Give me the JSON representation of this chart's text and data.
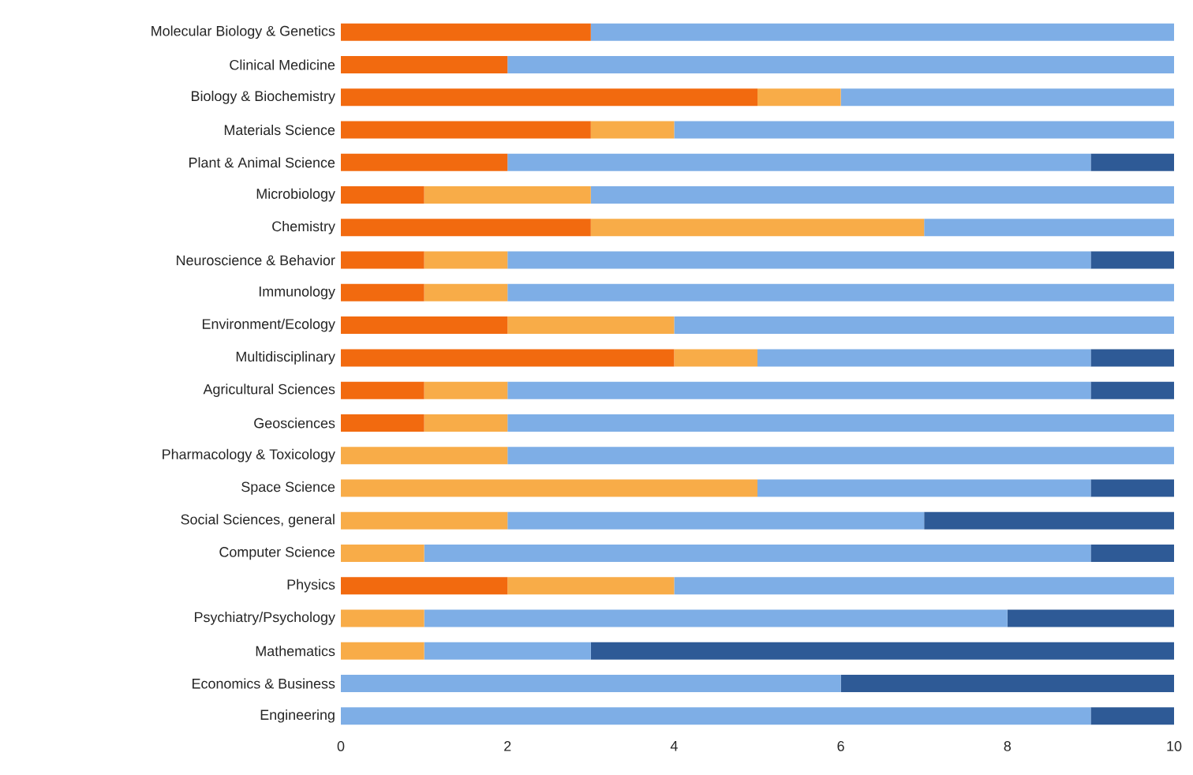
{
  "chart_data": {
    "type": "bar",
    "orientation": "horizontal",
    "stacked": true,
    "categories": [
      "Molecular Biology & Genetics",
      "Clinical Medicine",
      "Biology & Biochemistry",
      "Materials Science",
      "Plant & Animal Science",
      "Microbiology",
      "Chemistry",
      "Neuroscience & Behavior",
      "Immunology",
      "Environment/Ecology",
      "Multidisciplinary",
      "Agricultural Sciences",
      "Geosciences",
      "Pharmacology & Toxicology",
      "Space Science",
      "Social Sciences, general",
      "Computer Science",
      "Physics",
      "Psychiatry/Psychology",
      "Mathematics",
      "Economics & Business",
      "Engineering"
    ],
    "series": [
      {
        "color": "#f26a0f",
        "values": [
          3,
          2,
          5,
          3,
          2,
          1,
          3,
          1,
          1,
          2,
          4,
          1,
          1,
          0,
          0,
          0,
          0,
          2,
          0,
          0,
          0,
          0
        ]
      },
      {
        "color": "#f8ac48",
        "values": [
          0,
          0,
          1,
          1,
          0,
          2,
          4,
          1,
          1,
          2,
          1,
          1,
          1,
          2,
          5,
          2,
          1,
          2,
          1,
          1,
          0,
          0
        ]
      },
      {
        "color": "#7eaee6",
        "values": [
          7,
          8,
          4,
          6,
          7,
          7,
          3,
          7,
          8,
          6,
          4,
          7,
          8,
          8,
          4,
          5,
          8,
          6,
          7,
          2,
          6,
          9
        ]
      },
      {
        "color": "#2e5a96",
        "values": [
          0,
          0,
          0,
          0,
          1,
          0,
          0,
          1,
          0,
          0,
          1,
          1,
          0,
          0,
          1,
          3,
          1,
          0,
          2,
          7,
          4,
          1
        ]
      }
    ],
    "xlim": [
      0,
      10
    ],
    "xticks": [
      0,
      2,
      4,
      6,
      8,
      10
    ]
  }
}
